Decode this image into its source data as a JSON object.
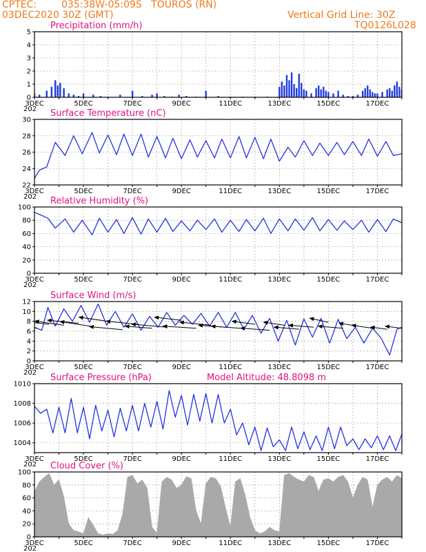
{
  "header": {
    "source": "CPTEC:",
    "location": "035:38W-05:09S   TOUROS (RN)",
    "run_time": "03DEC2020 30Z (GMT)",
    "grid_note": "Vertical Grid Line: 30Z",
    "model_id": "TQ0126L028"
  },
  "colors": {
    "header": "#ee7a1c",
    "title": "#e0137a",
    "line": "#2233dd",
    "bar": "#1f3be0",
    "cloud": "#a9a9a9",
    "arrow": "#000000"
  },
  "x_axis": {
    "days": [
      3,
      4,
      5,
      6,
      7,
      8,
      9,
      10,
      11,
      12,
      13,
      14,
      15,
      16,
      17,
      18
    ],
    "labeled_days": [
      3,
      5,
      7,
      9,
      11,
      13,
      15,
      17
    ],
    "tick_labels": [
      "3DEC",
      "5DEC",
      "7DEC",
      "9DEC",
      "11DEC",
      "13DEC",
      "15DEC",
      "17DEC"
    ],
    "year_fragment": "202"
  },
  "chart_data": [
    {
      "type": "bar",
      "title": "Precipitation (mm/h)",
      "ylim": [
        0,
        5
      ],
      "yticks": [
        0,
        1,
        2,
        3,
        4,
        5
      ],
      "grid": true,
      "x_unit": "day of Dec 2020",
      "x": [
        3.0,
        3.2,
        3.5,
        3.7,
        3.85,
        3.95,
        4.05,
        4.2,
        4.4,
        4.6,
        4.8,
        5.0,
        5.4,
        5.7,
        6.0,
        6.5,
        7.0,
        7.4,
        7.8,
        8.0,
        8.3,
        8.6,
        8.9,
        9.2,
        9.6,
        10.0,
        10.5,
        11.0,
        11.5,
        12.0,
        12.5,
        13.0,
        13.1,
        13.2,
        13.3,
        13.4,
        13.5,
        13.6,
        13.7,
        13.8,
        13.9,
        14.0,
        14.1,
        14.3,
        14.5,
        14.6,
        14.7,
        14.8,
        14.9,
        15.0,
        15.2,
        15.4,
        15.6,
        15.8,
        16.0,
        16.2,
        16.4,
        16.5,
        16.6,
        16.7,
        16.8,
        16.9,
        17.0,
        17.2,
        17.4,
        17.5,
        17.6,
        17.7,
        17.8,
        17.9,
        18.0
      ],
      "values": [
        0.3,
        0.2,
        0.5,
        0.8,
        1.3,
        0.9,
        1.1,
        0.7,
        0.3,
        0.2,
        0.1,
        0.3,
        0.2,
        0.1,
        0.05,
        0.2,
        0.5,
        0.1,
        0.2,
        0.3,
        0.1,
        0.05,
        0.2,
        0.1,
        0.05,
        0.5,
        0.1,
        0.05,
        0.05,
        0.05,
        0.05,
        0.8,
        1.2,
        0.9,
        1.7,
        1.3,
        1.9,
        1.0,
        0.7,
        1.8,
        1.1,
        0.6,
        0.5,
        0.3,
        0.7,
        0.9,
        0.6,
        0.8,
        0.5,
        0.4,
        0.3,
        0.5,
        0.2,
        0.1,
        0.1,
        0.2,
        0.5,
        0.7,
        0.9,
        0.6,
        0.4,
        0.3,
        0.3,
        0.4,
        0.6,
        0.7,
        0.5,
        0.9,
        1.2,
        0.8,
        0.6
      ]
    },
    {
      "type": "line",
      "title": "Surface Temperature (nC)",
      "ylim": [
        22,
        30
      ],
      "yticks": [
        22,
        24,
        26,
        28,
        30
      ],
      "grid": true,
      "x": [
        3.0,
        3.2,
        3.5,
        3.85,
        4.25,
        4.6,
        4.95,
        5.35,
        5.65,
        6.0,
        6.35,
        6.65,
        7.0,
        7.35,
        7.65,
        8.0,
        8.35,
        8.65,
        9.0,
        9.35,
        9.65,
        10.0,
        10.35,
        10.65,
        11.0,
        11.35,
        11.65,
        12.0,
        12.35,
        12.65,
        13.0,
        13.35,
        13.65,
        14.0,
        14.35,
        14.65,
        15.0,
        15.35,
        15.65,
        16.0,
        16.35,
        16.65,
        17.0,
        17.35,
        17.65,
        18.0
      ],
      "values": [
        22.8,
        23.8,
        24.2,
        27.2,
        25.6,
        28.0,
        25.8,
        28.4,
        25.9,
        28.1,
        25.7,
        28.2,
        25.6,
        28.2,
        25.4,
        27.9,
        25.3,
        27.7,
        25.2,
        27.5,
        25.4,
        27.4,
        25.3,
        27.6,
        25.3,
        27.9,
        25.3,
        27.8,
        25.2,
        27.6,
        24.9,
        26.6,
        25.4,
        27.4,
        25.6,
        27.1,
        25.6,
        27.2,
        25.7,
        27.3,
        25.6,
        27.6,
        25.5,
        27.3,
        25.6,
        25.8
      ]
    },
    {
      "type": "line",
      "title": "Relative Humidity (%)",
      "ylim": [
        0,
        100
      ],
      "yticks": [
        0,
        20,
        40,
        60,
        80,
        100
      ],
      "grid": true,
      "x": [
        3.0,
        3.25,
        3.55,
        3.85,
        4.25,
        4.6,
        4.95,
        5.35,
        5.65,
        6.0,
        6.35,
        6.65,
        7.0,
        7.35,
        7.65,
        8.0,
        8.35,
        8.65,
        9.0,
        9.35,
        9.65,
        10.0,
        10.35,
        10.65,
        11.0,
        11.35,
        11.65,
        12.0,
        12.35,
        12.65,
        13.0,
        13.35,
        13.65,
        14.0,
        14.35,
        14.65,
        15.0,
        15.35,
        15.65,
        16.0,
        16.35,
        16.65,
        17.0,
        17.35,
        17.65,
        18.0
      ],
      "values": [
        92,
        88,
        83,
        68,
        82,
        62,
        80,
        58,
        83,
        62,
        81,
        60,
        84,
        59,
        82,
        62,
        83,
        63,
        79,
        64,
        80,
        66,
        82,
        62,
        80,
        63,
        81,
        64,
        83,
        60,
        82,
        64,
        82,
        65,
        84,
        64,
        81,
        65,
        79,
        66,
        80,
        62,
        81,
        63,
        82,
        76
      ]
    },
    {
      "type": "line",
      "title": "Surface Wind (m/s)",
      "ylim": [
        0,
        12
      ],
      "yticks": [
        0,
        2,
        4,
        6,
        8,
        10,
        12
      ],
      "grid": true,
      "x": [
        3.0,
        3.3,
        3.55,
        3.85,
        4.2,
        4.55,
        4.9,
        5.25,
        5.6,
        5.95,
        6.3,
        6.65,
        7.0,
        7.35,
        7.7,
        8.05,
        8.4,
        8.75,
        9.1,
        9.45,
        9.8,
        10.15,
        10.5,
        10.85,
        11.2,
        11.55,
        11.9,
        12.25,
        12.6,
        12.95,
        13.3,
        13.65,
        14.0,
        14.35,
        14.7,
        15.05,
        15.4,
        15.75,
        16.1,
        16.45,
        16.8,
        17.15,
        17.5,
        17.8,
        18.0
      ],
      "values": [
        6.8,
        6.2,
        10.8,
        7.0,
        10.5,
        8.0,
        11.2,
        7.8,
        11.5,
        7.2,
        10.0,
        6.8,
        9.5,
        6.2,
        9.0,
        6.8,
        9.8,
        7.2,
        9.2,
        7.4,
        9.6,
        7.0,
        9.8,
        6.8,
        9.8,
        6.4,
        9.2,
        5.6,
        8.6,
        4.0,
        8.2,
        3.2,
        8.5,
        4.8,
        8.6,
        3.6,
        8.4,
        4.5,
        6.8,
        3.6,
        6.6,
        4.6,
        1.2,
        6.4,
        6.8
      ],
      "arrows": {
        "x": [
          3.1,
          3.6,
          4.2,
          4.8,
          5.4,
          6.0,
          6.6,
          7.2,
          7.8,
          8.4,
          9.0,
          9.6,
          10.2,
          10.8,
          11.4,
          12.0,
          12.6,
          13.2,
          13.8,
          14.4,
          15.0,
          15.6,
          16.2,
          16.8,
          17.4,
          18.0
        ],
        "y": [
          6.6,
          7.4,
          7.2,
          7.6,
          6.9,
          8.0,
          6.3,
          7.4,
          6.6,
          6.8,
          8.2,
          6.6,
          7.2,
          6.8,
          6.6,
          7.4,
          6.2,
          7.2,
          6.4,
          6.8,
          7.8,
          6.6,
          7.0,
          6.6,
          6.4,
          6.6
        ],
        "dx": [
          -10,
          -14,
          -14,
          -15,
          -16,
          -14,
          -16,
          -15,
          -13,
          -17,
          -13,
          -16,
          -15,
          -13,
          -14,
          -11,
          -14,
          -10,
          -12,
          -12,
          -9,
          -12,
          -9,
          -10,
          -8,
          -8
        ],
        "dy": [
          -4,
          -3,
          -4,
          -3,
          -5,
          -4,
          -3,
          -3,
          -2,
          -3,
          -3,
          -2,
          -3,
          -2,
          -2,
          -3,
          -2,
          -3,
          -2,
          -2,
          -4,
          -2,
          -3,
          -3,
          -2,
          -2
        ]
      }
    },
    {
      "type": "line",
      "title": "Surface Pressure (hPa)",
      "annotation": "Model Altitude: 48.8098 m",
      "ylim": [
        1003,
        1010
      ],
      "yticks": [
        1004,
        1006,
        1008,
        1010
      ],
      "grid": true,
      "x": [
        3.0,
        3.25,
        3.5,
        3.75,
        4.0,
        4.25,
        4.5,
        4.75,
        5.0,
        5.25,
        5.5,
        5.75,
        6.0,
        6.25,
        6.5,
        6.75,
        7.0,
        7.25,
        7.5,
        7.75,
        8.0,
        8.25,
        8.5,
        8.75,
        9.0,
        9.25,
        9.5,
        9.75,
        10.0,
        10.25,
        10.5,
        10.75,
        11.0,
        11.25,
        11.5,
        11.75,
        12.0,
        12.25,
        12.5,
        12.75,
        13.0,
        13.25,
        13.5,
        13.75,
        14.0,
        14.25,
        14.5,
        14.75,
        15.0,
        15.25,
        15.5,
        15.75,
        16.0,
        16.25,
        16.5,
        16.75,
        17.0,
        17.25,
        17.5,
        17.75,
        18.0
      ],
      "values": [
        1007.7,
        1007.0,
        1007.4,
        1005.0,
        1007.6,
        1005.0,
        1008.5,
        1005.0,
        1007.6,
        1004.4,
        1007.8,
        1005.2,
        1007.3,
        1004.6,
        1007.5,
        1005.2,
        1007.8,
        1005.2,
        1008.0,
        1005.6,
        1008.2,
        1005.4,
        1009.3,
        1006.6,
        1008.8,
        1005.8,
        1008.9,
        1006.2,
        1009.0,
        1006.0,
        1008.9,
        1006.0,
        1007.4,
        1004.8,
        1006.0,
        1003.8,
        1005.6,
        1003.2,
        1005.5,
        1003.6,
        1004.3,
        1003.2,
        1005.6,
        1003.4,
        1005.1,
        1003.3,
        1004.7,
        1003.2,
        1005.6,
        1003.4,
        1005.6,
        1003.7,
        1004.4,
        1003.3,
        1004.4,
        1003.5,
        1004.7,
        1003.3,
        1004.7,
        1003.2,
        1004.9
      ]
    },
    {
      "type": "area",
      "title": "Cloud Cover (%)",
      "ylim": [
        0,
        100
      ],
      "yticks": [
        0,
        20,
        40,
        60,
        80,
        100
      ],
      "grid": true,
      "x": [
        3.0,
        3.2,
        3.4,
        3.6,
        3.8,
        4.0,
        4.2,
        4.4,
        4.6,
        4.8,
        5.0,
        5.2,
        5.4,
        5.6,
        5.8,
        6.0,
        6.2,
        6.4,
        6.6,
        6.8,
        7.0,
        7.2,
        7.4,
        7.6,
        7.8,
        8.0,
        8.2,
        8.4,
        8.6,
        8.8,
        9.0,
        9.2,
        9.4,
        9.6,
        9.8,
        10.0,
        10.2,
        10.4,
        10.6,
        10.8,
        11.0,
        11.2,
        11.4,
        11.6,
        11.8,
        12.0,
        12.2,
        12.4,
        12.6,
        12.8,
        13.0,
        13.2,
        13.4,
        13.6,
        13.8,
        14.0,
        14.2,
        14.4,
        14.6,
        14.8,
        15.0,
        15.2,
        15.4,
        15.6,
        15.8,
        16.0,
        16.2,
        16.4,
        16.6,
        16.8,
        17.0,
        17.2,
        17.4,
        17.6,
        17.8,
        18.0
      ],
      "values": [
        70,
        85,
        92,
        98,
        80,
        88,
        62,
        20,
        10,
        8,
        5,
        30,
        18,
        5,
        3,
        5,
        4,
        10,
        35,
        92,
        95,
        82,
        88,
        75,
        15,
        6,
        85,
        92,
        88,
        75,
        80,
        93,
        90,
        40,
        20,
        82,
        92,
        90,
        78,
        45,
        15,
        85,
        90,
        65,
        30,
        10,
        5,
        8,
        15,
        10,
        8,
        95,
        98,
        92,
        88,
        85,
        95,
        92,
        70,
        88,
        90,
        85,
        92,
        95,
        85,
        60,
        80,
        92,
        88,
        45,
        80,
        88,
        92,
        85,
        95,
        90
      ]
    }
  ]
}
